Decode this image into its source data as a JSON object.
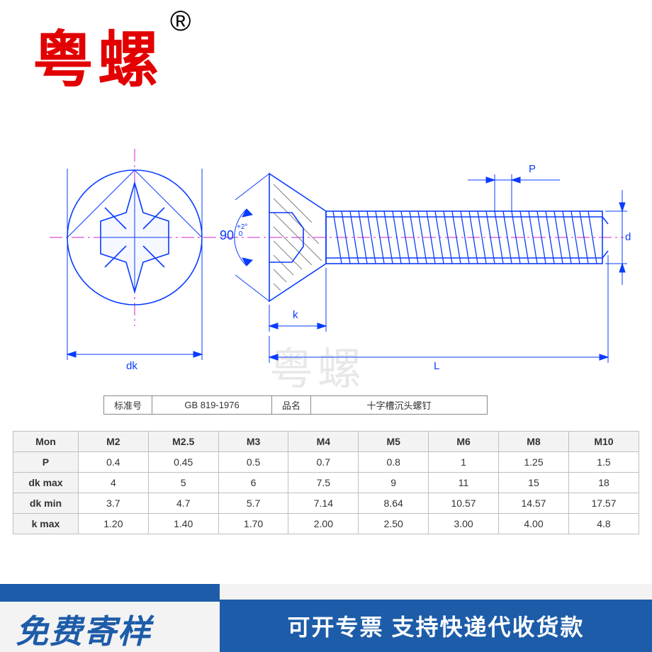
{
  "brand": {
    "text": "粤螺",
    "registered": "®",
    "color": "#e20000"
  },
  "watermark": "粤螺",
  "diagram": {
    "angle_label": "90",
    "angle_tol": "+2°\n 0",
    "dims": {
      "dk": "dk",
      "k": "k",
      "L": "L",
      "P": "P",
      "d": "d"
    },
    "colors": {
      "outline": "#0a3cff",
      "center": "#d020d0",
      "hatch": "#808080"
    }
  },
  "meta": {
    "std_label": "标准号",
    "std_value": "GB 819-1976",
    "name_label": "品名",
    "name_value": "十字槽沉头螺钉"
  },
  "table": {
    "header": [
      "Mon",
      "M2",
      "M2.5",
      "M3",
      "M4",
      "M5",
      "M6",
      "M8",
      "M10"
    ],
    "rows": [
      {
        "label": "P",
        "cells": [
          "0.4",
          "0.45",
          "0.5",
          "0.7",
          "0.8",
          "1",
          "1.25",
          "1.5"
        ]
      },
      {
        "label": "dk max",
        "cells": [
          "4",
          "5",
          "6",
          "7.5",
          "9",
          "11",
          "15",
          "18"
        ]
      },
      {
        "label": "dk min",
        "cells": [
          "3.7",
          "4.7",
          "5.7",
          "7.14",
          "8.64",
          "10.57",
          "14.57",
          "17.57"
        ]
      },
      {
        "label": "k max",
        "cells": [
          "1.20",
          "1.40",
          "1.70",
          "2.00",
          "2.50",
          "3.00",
          "4.00",
          "4.8"
        ]
      }
    ]
  },
  "footer": {
    "left": "免费寄样",
    "right": "可开专票 支持快递代收货款",
    "accent": "#1d5ca8"
  }
}
